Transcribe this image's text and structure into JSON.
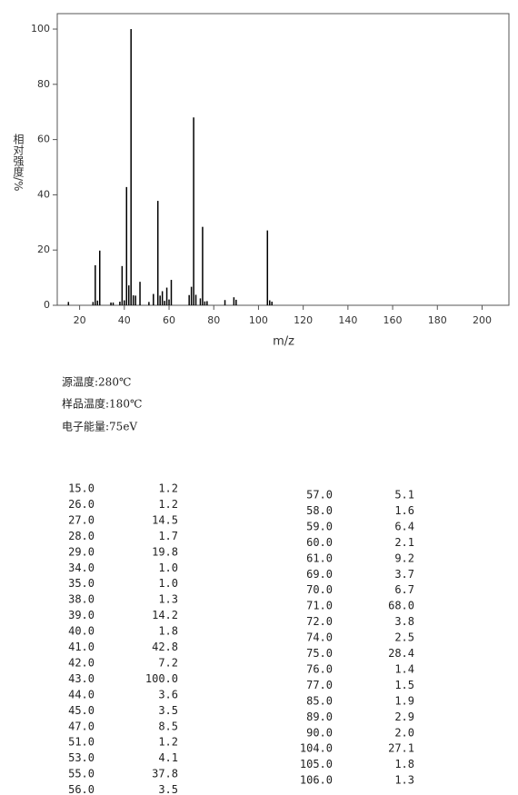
{
  "chart_data": {
    "type": "stem",
    "x_label": "m/z",
    "y_label": "相对强度/%",
    "x": [
      15,
      26,
      27,
      28,
      29,
      34,
      35,
      38,
      39,
      40,
      41,
      42,
      43,
      44,
      45,
      47,
      51,
      53,
      55,
      56,
      57,
      58,
      59,
      60,
      61,
      69,
      70,
      71,
      72,
      74,
      75,
      76,
      77,
      85,
      89,
      90,
      104,
      105,
      106
    ],
    "values": [
      1.2,
      1.2,
      14.5,
      1.7,
      19.8,
      1.0,
      1.0,
      1.3,
      14.2,
      1.8,
      42.8,
      7.2,
      100.0,
      3.6,
      3.5,
      8.5,
      1.2,
      4.1,
      37.8,
      3.5,
      5.1,
      1.6,
      6.4,
      2.1,
      9.2,
      3.7,
      6.7,
      68.0,
      3.8,
      2.5,
      28.4,
      1.4,
      1.5,
      1.9,
      2.9,
      2.0,
      27.1,
      1.8,
      1.3
    ],
    "color": "#000000",
    "xlim": [
      10,
      212
    ],
    "xticks": [
      20,
      40,
      60,
      80,
      100,
      120,
      140,
      160,
      180,
      200
    ],
    "ylim": [
      0,
      105.6
    ],
    "yticks": [
      0,
      20,
      40,
      60,
      80,
      100
    ]
  },
  "notes": [
    "源温度:280℃",
    "样品温度:180℃",
    "电子能量:75eV"
  ],
  "table": {
    "rows": [
      [
        "15.0",
        "1.2"
      ],
      [
        "26.0",
        "1.2"
      ],
      [
        "27.0",
        "14.5"
      ],
      [
        "28.0",
        "1.7"
      ],
      [
        "29.0",
        "19.8"
      ],
      [
        "34.0",
        "1.0"
      ],
      [
        "35.0",
        "1.0"
      ],
      [
        "38.0",
        "1.3"
      ],
      [
        "39.0",
        "14.2"
      ],
      [
        "40.0",
        "1.8"
      ],
      [
        "41.0",
        "42.8"
      ],
      [
        "42.0",
        "7.2"
      ],
      [
        "43.0",
        "100.0"
      ],
      [
        "44.0",
        "3.6"
      ],
      [
        "45.0",
        "3.5"
      ],
      [
        "47.0",
        "8.5"
      ],
      [
        "51.0",
        "1.2"
      ],
      [
        "53.0",
        "4.1"
      ],
      [
        "55.0",
        "37.8"
      ],
      [
        "56.0",
        "3.5"
      ],
      [
        "57.0",
        "5.1"
      ],
      [
        "58.0",
        "1.6"
      ],
      [
        "59.0",
        "6.4"
      ],
      [
        "60.0",
        "2.1"
      ],
      [
        "61.0",
        "9.2"
      ],
      [
        "69.0",
        "3.7"
      ],
      [
        "70.0",
        "6.7"
      ],
      [
        "71.0",
        "68.0"
      ],
      [
        "72.0",
        "3.8"
      ],
      [
        "74.0",
        "2.5"
      ],
      [
        "75.0",
        "28.4"
      ],
      [
        "76.0",
        "1.4"
      ],
      [
        "77.0",
        "1.5"
      ],
      [
        "85.0",
        "1.9"
      ],
      [
        "89.0",
        "2.9"
      ],
      [
        "90.0",
        "2.0"
      ],
      [
        "104.0",
        "27.1"
      ],
      [
        "105.0",
        "1.8"
      ],
      [
        "106.0",
        "1.3"
      ]
    ]
  }
}
